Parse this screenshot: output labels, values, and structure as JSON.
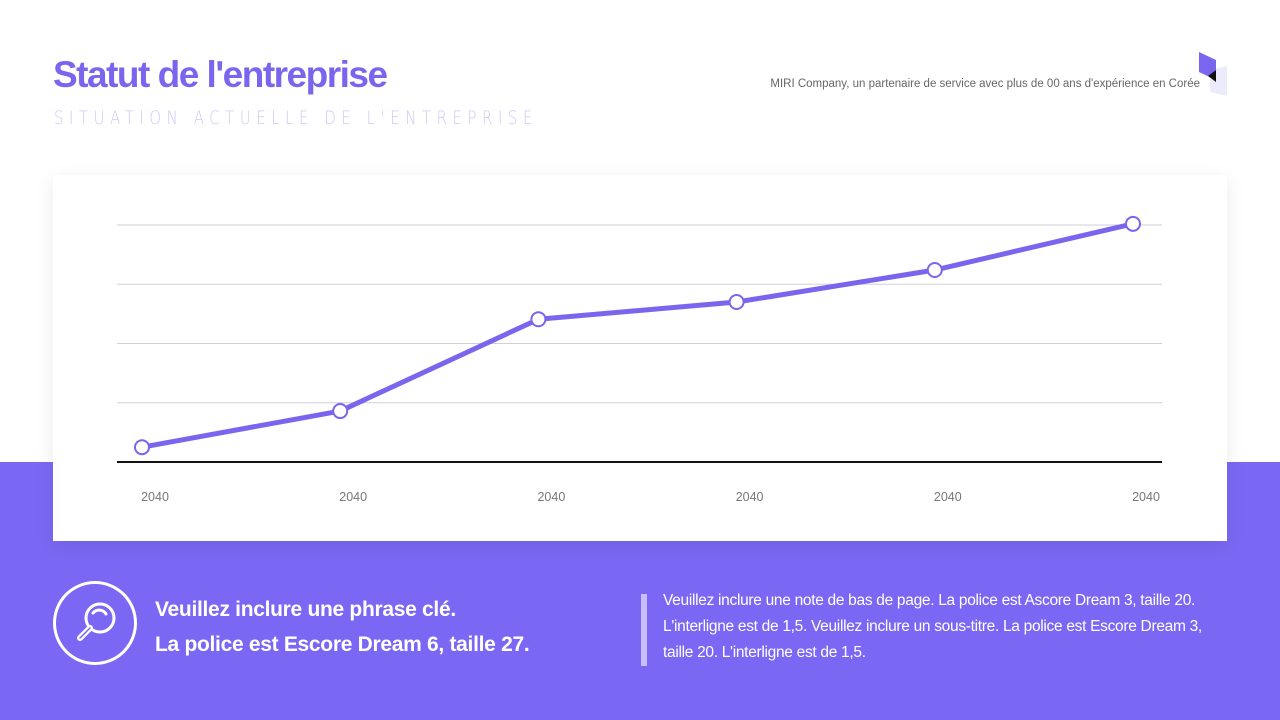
{
  "header": {
    "title": "Statut de l'entreprise",
    "subtitle": "SITUATION ACTUELLE DE L'ENTREPRISE",
    "tagline": "MIRI Company, un partenaire de service avec plus de 00 ans d'expérience en Corée"
  },
  "colors": {
    "accent": "#7a66ee",
    "band": "#7a68f4",
    "subtitle": "#cfc8f6"
  },
  "chart_data": {
    "type": "line",
    "categories": [
      "2040",
      "2040",
      "2040",
      "2040",
      "2040",
      "2040"
    ],
    "series": [
      {
        "values": [
          0.25,
          0.86,
          2.41,
          2.7,
          3.24,
          4.02
        ]
      }
    ],
    "ylim": [
      0,
      4
    ],
    "grid": true,
    "title": "",
    "xlabel": "",
    "ylabel": ""
  },
  "footer": {
    "icon": "magnifier-icon",
    "key_line1": "Veuillez inclure une phrase clé.",
    "key_line2": "La police est Escore Dream 6, taille 27.",
    "note": "Veuillez inclure une note de bas de page. La police est Ascore Dream 3, taille 20. L'interligne est de 1,5. Veuillez inclure un sous-titre. La police est Escore Dream 3, taille 20. L'interligne est de 1,5."
  }
}
